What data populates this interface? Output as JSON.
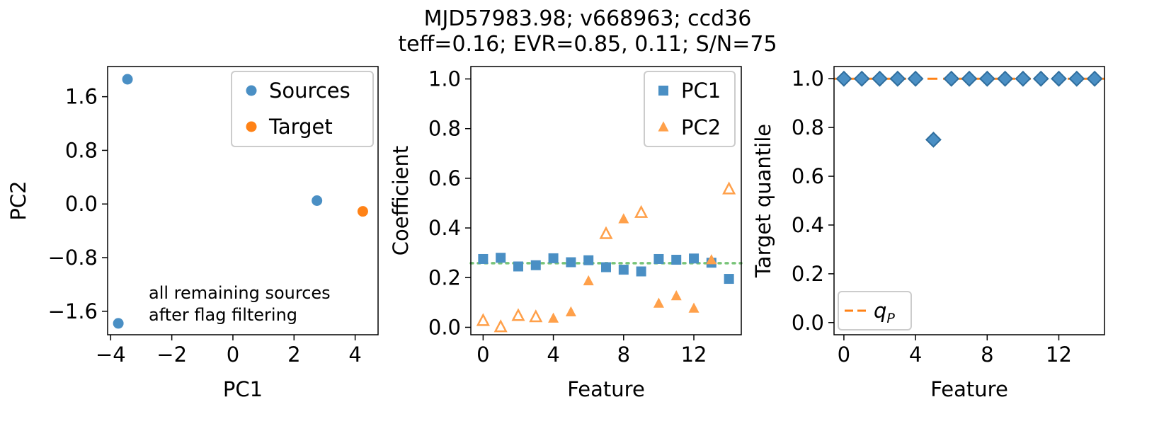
{
  "figure": {
    "title_line1": "MJD57983.98; v668963; ccd36",
    "title_line2": "teff=0.16; EVR=0.85, 0.11; S/N=75"
  },
  "colors": {
    "blue": "#4a8fc4",
    "orange": "#ff8216",
    "orange_light": "#ffa04a",
    "green_dotted": "#78c478"
  },
  "chart_data": [
    {
      "type": "scatter",
      "title": "",
      "xlabel": "PC1",
      "ylabel": "PC2",
      "xlim": [
        -4.1,
        4.75
      ],
      "ylim": [
        -1.95,
        2.05
      ],
      "xticks": [
        -4,
        -2,
        0,
        2,
        4
      ],
      "xtick_labels": [
        "−4",
        "−2",
        "0",
        "2",
        "4"
      ],
      "yticks": [
        -1.6,
        -0.8,
        0.0,
        0.8,
        1.6
      ],
      "ytick_labels": [
        "−1.6",
        "−0.8",
        "0.0",
        "0.8",
        "1.6"
      ],
      "legend_position": "top-right",
      "annotation_line1": "all remaining sources",
      "annotation_line2": "after flag filtering",
      "series": [
        {
          "name": "Sources",
          "color": "#4a8fc4",
          "marker": "circle",
          "points": [
            [
              -3.45,
              1.86
            ],
            [
              -3.75,
              -1.78
            ],
            [
              2.75,
              0.05
            ]
          ]
        },
        {
          "name": "Target",
          "color": "#ff8216",
          "marker": "circle",
          "points": [
            [
              4.25,
              -0.11
            ]
          ]
        }
      ]
    },
    {
      "type": "scatter",
      "title": "",
      "xlabel": "Feature",
      "ylabel": "Coefficient",
      "xlim": [
        -0.7,
        14.7
      ],
      "ylim": [
        -0.03,
        1.05
      ],
      "xticks": [
        0,
        4,
        8,
        12
      ],
      "xtick_labels": [
        "0",
        "4",
        "8",
        "12"
      ],
      "yticks": [
        0.0,
        0.2,
        0.4,
        0.6,
        0.8,
        1.0
      ],
      "ytick_labels": [
        "0.0",
        "0.2",
        "0.4",
        "0.6",
        "0.8",
        "1.0"
      ],
      "legend_position": "top-right",
      "reference_line": {
        "y": 0.258,
        "style": "dotted",
        "color": "#78c478"
      },
      "series": [
        {
          "name": "PC1",
          "color": "#4a8fc4",
          "marker": "square",
          "x": [
            0,
            1,
            2,
            3,
            4,
            5,
            6,
            7,
            8,
            9,
            10,
            11,
            12,
            13,
            14
          ],
          "y": [
            0.275,
            0.28,
            0.245,
            0.25,
            0.278,
            0.262,
            0.27,
            0.242,
            0.232,
            0.225,
            0.275,
            0.272,
            0.277,
            0.26,
            0.195
          ]
        },
        {
          "name": "PC2",
          "color": "#ffa04a",
          "marker": "triangle",
          "x": [
            0,
            1,
            2,
            3,
            4,
            5,
            6,
            7,
            8,
            9,
            10,
            11,
            12,
            13,
            14
          ],
          "y": [
            0.025,
            0.0,
            0.045,
            0.04,
            0.035,
            0.06,
            0.185,
            0.375,
            0.435,
            0.46,
            0.095,
            0.125,
            0.075,
            0.27,
            0.555
          ],
          "hollow": [
            true,
            true,
            true,
            true,
            false,
            false,
            false,
            true,
            false,
            true,
            false,
            false,
            false,
            false,
            true
          ]
        }
      ]
    },
    {
      "type": "scatter",
      "title": "",
      "xlabel": "Feature",
      "ylabel": "Target quantile",
      "xlim": [
        -0.55,
        14.55
      ],
      "ylim": [
        -0.05,
        1.05
      ],
      "xticks": [
        0,
        4,
        8,
        12
      ],
      "xtick_labels": [
        "0",
        "4",
        "8",
        "12"
      ],
      "yticks": [
        0.0,
        0.2,
        0.4,
        0.6,
        0.8,
        1.0
      ],
      "ytick_labels": [
        "0.0",
        "0.2",
        "0.4",
        "0.6",
        "0.8",
        "1.0"
      ],
      "legend_position": "bottom-left",
      "reference_line": {
        "y": 1.0,
        "style": "dashed",
        "color": "#ff8216",
        "label_main": "q",
        "label_sub": "P"
      },
      "series": [
        {
          "name": "Target quantile",
          "color": "#4a8fc4",
          "marker": "diamond",
          "x": [
            0,
            1,
            2,
            3,
            4,
            5,
            6,
            7,
            8,
            9,
            10,
            11,
            12,
            13,
            14
          ],
          "y": [
            1,
            1,
            1,
            1,
            1,
            0.75,
            1,
            1,
            1,
            1,
            1,
            1,
            1,
            1,
            1
          ]
        }
      ]
    }
  ]
}
